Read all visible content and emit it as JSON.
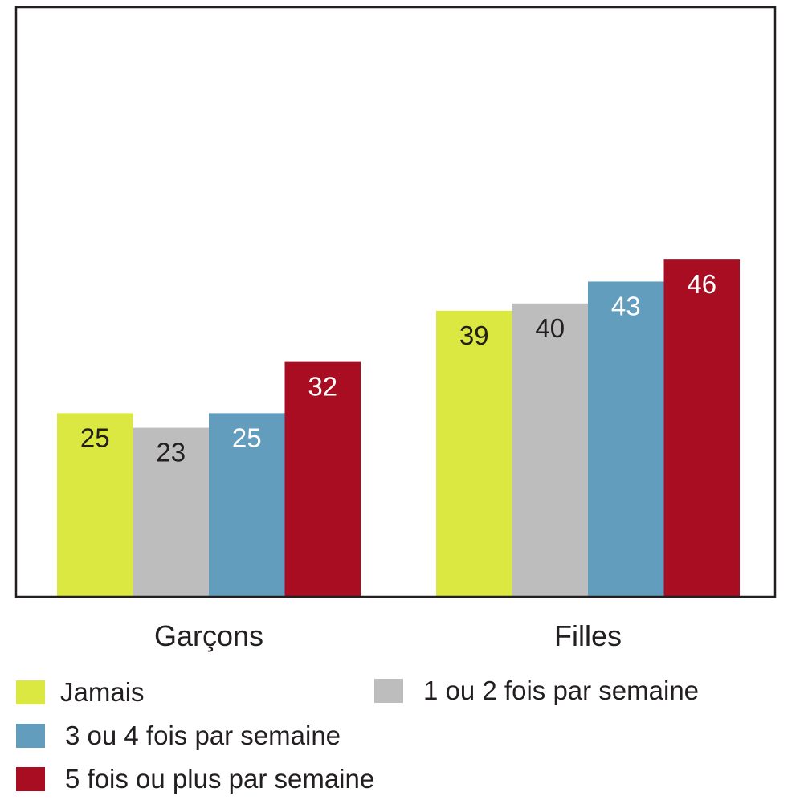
{
  "chart_data": {
    "type": "bar",
    "categories": [
      "Garçons",
      "Filles"
    ],
    "series": [
      {
        "name": "Jamais",
        "values": [
          25,
          39
        ],
        "color": "#dbe842",
        "label_color": "#231f20"
      },
      {
        "name": "1 ou 2 fois par semaine",
        "values": [
          23,
          40
        ],
        "color": "#bdbdbd",
        "label_color": "#231f20"
      },
      {
        "name": "3 ou 4 fois par semaine",
        "values": [
          25,
          43
        ],
        "color": "#639dbe",
        "label_color": "#ffffff"
      },
      {
        "name": "5 fois ou plus par semaine",
        "values": [
          32,
          46
        ],
        "color": "#a80d22",
        "label_color": "#ffffff"
      }
    ],
    "title": "",
    "xlabel": "",
    "ylabel": "",
    "ylim": [
      0,
      80.5
    ],
    "grid": false,
    "y_axis_ticks_shown": false,
    "legend_position": "bottom"
  }
}
